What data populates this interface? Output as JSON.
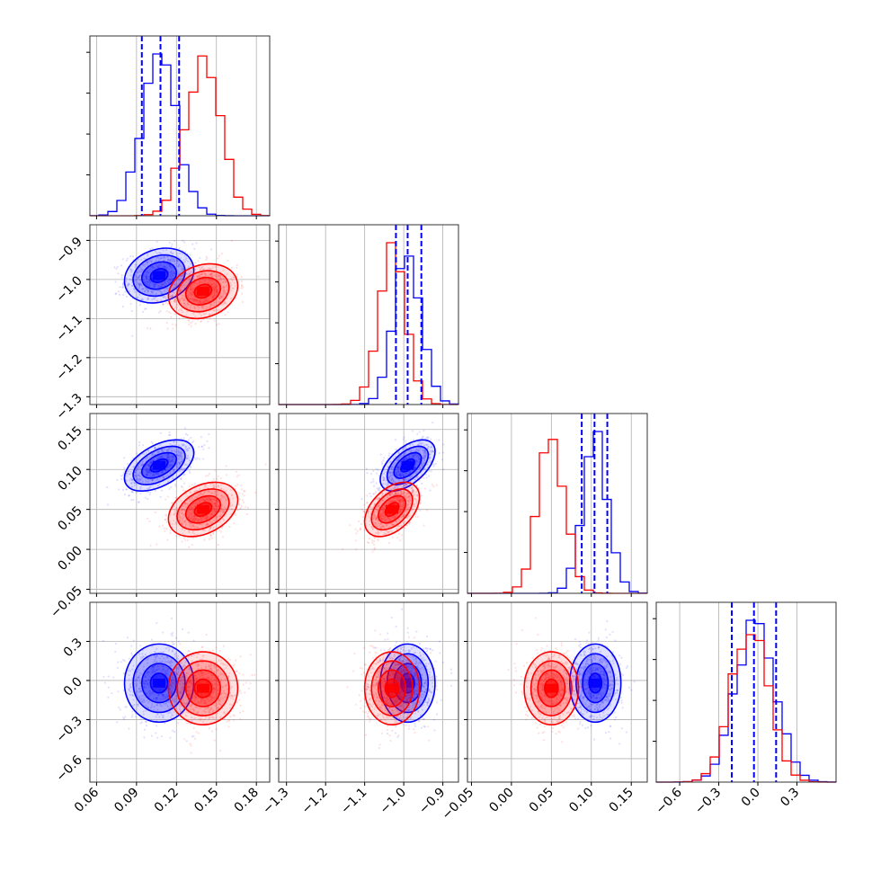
{
  "chart_data": {
    "type": "corner",
    "parameters": [
      {
        "range": [
          0.055,
          0.19
        ],
        "ticks": [
          0.06,
          0.09,
          0.12,
          0.15,
          0.18
        ],
        "tick_labels": [
          "0.06",
          "0.09",
          "0.12",
          "0.15",
          "0.18"
        ]
      },
      {
        "range": [
          -1.32,
          -0.86
        ],
        "ticks": [
          -1.3,
          -1.2,
          -1.1,
          -1.0,
          -0.9
        ],
        "tick_labels": [
          "−1.3",
          "−1.2",
          "−1.1",
          "−1.0",
          "−0.9"
        ]
      },
      {
        "range": [
          -0.055,
          0.17
        ],
        "ticks": [
          -0.05,
          0.0,
          0.05,
          0.1,
          0.15
        ],
        "tick_labels": [
          "−0.05",
          "0.00",
          "0.05",
          "0.10",
          "0.15"
        ]
      },
      {
        "range": [
          -0.78,
          0.6
        ],
        "ticks": [
          -0.6,
          -0.3,
          0.0,
          0.3
        ],
        "tick_labels": [
          "−0.6",
          "−0.3",
          "0.0",
          "0.3"
        ]
      }
    ],
    "series": [
      {
        "color": "#0000ff",
        "mean": [
          0.107,
          -0.99,
          0.105,
          -0.02
        ],
        "sd": [
          0.013,
          0.035,
          0.016,
          0.15
        ],
        "corr": [
          [
            1,
            0.2,
            0.5,
            0.0
          ],
          [
            0.2,
            1,
            0.55,
            0.0
          ],
          [
            0.5,
            0.55,
            1,
            0.0
          ],
          [
            0.0,
            0.0,
            0.0,
            1
          ]
        ]
      },
      {
        "color": "#ff0000",
        "mean": [
          0.14,
          -1.03,
          0.05,
          -0.06
        ],
        "sd": [
          0.013,
          0.035,
          0.017,
          0.14
        ],
        "corr": [
          [
            1,
            0.2,
            0.35,
            0.0
          ],
          [
            0.2,
            1,
            0.45,
            0.0
          ],
          [
            0.35,
            0.45,
            1,
            0.0
          ],
          [
            0.0,
            0.0,
            0.0,
            1
          ]
        ]
      }
    ],
    "quantiles": [
      {
        "param": 0,
        "values": [
          0.094,
          0.108,
          0.122
        ]
      },
      {
        "param": 1,
        "values": [
          -1.02,
          -0.99,
          -0.955
        ]
      },
      {
        "param": 2,
        "values": [
          0.088,
          0.104,
          0.12
        ]
      },
      {
        "param": 3,
        "values": [
          -0.2,
          -0.03,
          0.14
        ]
      }
    ],
    "contour_levels_sigma": [
      0.5,
      1.0,
      1.5,
      2.0
    ],
    "grid": true
  }
}
